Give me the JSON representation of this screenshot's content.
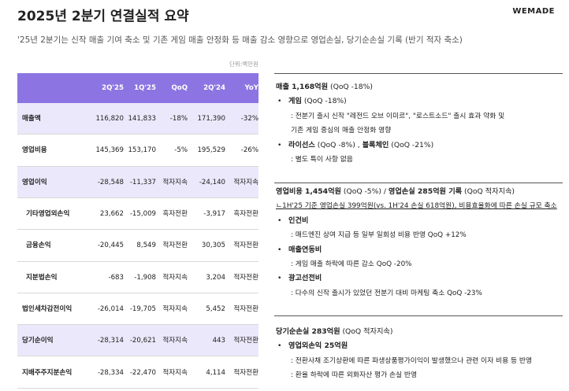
{
  "header": {
    "title": "2025년 2분기 연결실적 요약",
    "logo": "WEMADE",
    "subtitle": "'25년 2분기는 신작 매출 기여 축소 및 기존 게임 매출 안정화 등 매출 감소 영향으로 영업손실, 당기순손실 기록 (반기 적자 축소)",
    "unit": "단위:백만원"
  },
  "table": {
    "columns": [
      "2Q'25",
      "1Q'25",
      "QoQ",
      "2Q'24",
      "YoY"
    ],
    "rows": [
      {
        "label": "매출액",
        "cells": [
          "116,820",
          "141,833",
          "-18%",
          "171,390",
          "-32%"
        ],
        "highlight": true,
        "indent": false
      },
      {
        "label": "영업비용",
        "cells": [
          "145,369",
          "153,170",
          "-5%",
          "195,529",
          "-26%"
        ],
        "highlight": false,
        "indent": false
      },
      {
        "label": "영업이익",
        "cells": [
          "-28,548",
          "-11,337",
          "적자지속",
          "-24,140",
          "적자지속"
        ],
        "highlight": true,
        "indent": false
      },
      {
        "label": "기타영업외손익",
        "cells": [
          "23,662",
          "-15,009",
          "흑자전환",
          "-3,917",
          "흑자전환"
        ],
        "highlight": false,
        "indent": true
      },
      {
        "label": "금융손익",
        "cells": [
          "-20,445",
          "8,549",
          "적자전환",
          "30,305",
          "적자전환"
        ],
        "highlight": false,
        "indent": true
      },
      {
        "label": "지분법손익",
        "cells": [
          "-683",
          "-1,908",
          "적자지속",
          "3,204",
          "적자전환"
        ],
        "highlight": false,
        "indent": true
      },
      {
        "label": "법인세차감전이익",
        "cells": [
          "-26,014",
          "-19,705",
          "적자지속",
          "5,452",
          "적자전환"
        ],
        "highlight": false,
        "indent": false
      },
      {
        "label": "당기순이익",
        "cells": [
          "-28,314",
          "-20,621",
          "적자지속",
          "443",
          "적자전환"
        ],
        "highlight": true,
        "indent": false
      },
      {
        "label": "지배주주지분손익",
        "cells": [
          "-28,334",
          "-22,470",
          "적자지속",
          "4,114",
          "적자전환"
        ],
        "highlight": false,
        "indent": false
      }
    ]
  },
  "sections": [
    {
      "heading": [
        {
          "text": "매출 1,168억원",
          "bold": true
        },
        {
          "text": " (QoQ -18%)",
          "bold": false
        }
      ],
      "items": [
        {
          "parts": [
            {
              "text": "게임",
              "bold": true
            },
            {
              "text": " (QoQ -18%)",
              "bold": false
            }
          ],
          "details": [
            ": 전분기 출시 신작 \"레전드 오브 이미르\", \"로스트소드\" 출시 효과 약화 및",
            "기존 게임 중심의 매출 안정화 영향"
          ]
        },
        {
          "parts": [
            {
              "text": "라이선스",
              "bold": true
            },
            {
              "text": " (QoQ -8%) , ",
              "bold": false
            },
            {
              "text": "블록체인",
              "bold": true
            },
            {
              "text": " (QoQ -21%)",
              "bold": false
            }
          ],
          "details": [
            ": 별도 특이 사항 없음"
          ]
        }
      ]
    },
    {
      "heading": [
        {
          "text": "영업비용 1,454억원",
          "bold": true
        },
        {
          "text": " (QoQ -5%) / ",
          "bold": false
        },
        {
          "text": "영업손실 285억원 기록",
          "bold": true
        },
        {
          "text": " (QoQ 적자지속)",
          "bold": false
        }
      ],
      "note": "ㄴ1H'25 기준 영업손실 399억원(vs. 1H'24 손실 618억원), 비용효율화에 따른 손실 규모 축소",
      "items": [
        {
          "parts": [
            {
              "text": "인건비",
              "bold": true
            }
          ],
          "details": [
            ": 매드엔진 상여 지급 등 일부 일회성 비용 반영 QoQ +12%"
          ]
        },
        {
          "parts": [
            {
              "text": "매출연동비",
              "bold": true
            }
          ],
          "details": [
            ": 게임 매출 하락에 따른 감소 QoQ -20%"
          ]
        },
        {
          "parts": [
            {
              "text": "광고선전비",
              "bold": true
            }
          ],
          "details": [
            ": 다수의 신작 출시가 있었던 전분기 대비 마케팅 축소 QoQ -23%"
          ]
        }
      ]
    },
    {
      "heading": [
        {
          "text": "당기순손실 283억원",
          "bold": true
        },
        {
          "text": " (QoQ 적자지속)",
          "bold": false
        }
      ],
      "items": [
        {
          "parts": [
            {
              "text": "영업외손익 25억원",
              "bold": true
            }
          ],
          "details": [
            ": 전환사채 조기상환에 따른 파생상품평가이익이 발생했으나 관련 이자 비용 등 반영",
            ": 환율 하락에 따른 외화자산 평가 손실 반영"
          ]
        }
      ]
    }
  ]
}
